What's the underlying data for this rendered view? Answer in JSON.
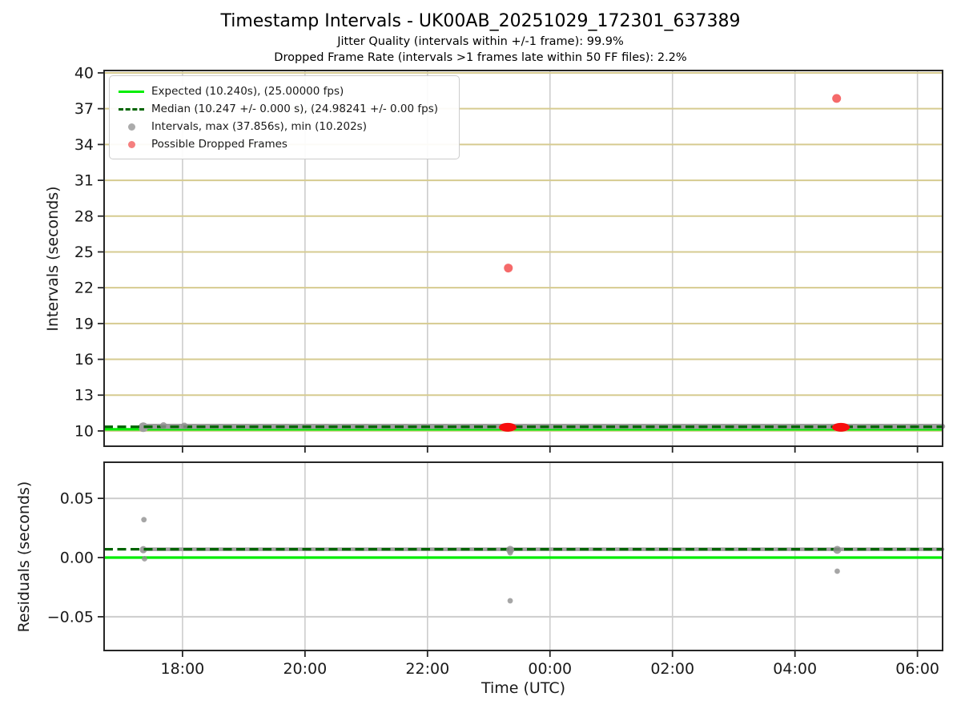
{
  "header": {
    "title": "Timestamp Intervals - UK00AB_20251029_172301_637389",
    "subtitle1": "Jitter Quality (intervals within +/-1 frame): 99.9%",
    "subtitle2": "Dropped Frame Rate (intervals >1 frames late within 50 FF files): 2.2%"
  },
  "legend": {
    "items": [
      {
        "symbol": "solid-line",
        "name": "expected-line-swatch",
        "color": "#00ee00",
        "label": "Expected (10.240s), (25.00000 fps)"
      },
      {
        "symbol": "dashed-line",
        "name": "median-line-swatch",
        "color": "#006400",
        "label": "Median (10.247 +/- 0.000 s), (24.98241 +/- 0.00 fps)"
      },
      {
        "symbol": "dot",
        "name": "intervals-dot-swatch",
        "color": "#ababab",
        "label": "Intervals, max (37.856s), min (10.202s)"
      },
      {
        "symbol": "dot",
        "name": "dropped-dot-swatch",
        "color": "#f57f7f",
        "label": "Possible Dropped Frames"
      }
    ]
  },
  "chart_data": [
    {
      "type": "scatter",
      "name": "intervals",
      "title": "Timestamp Intervals - UK00AB_20251029_172301_637389",
      "ylabel": "Intervals (seconds)",
      "x_unit": "hours UTC (24+ = past midnight)",
      "xlim": [
        16.72,
        30.41
      ],
      "ylim": [
        8.72,
        40.2
      ],
      "grid": {
        "y_color": "#d6cb90",
        "x_color": "#cdcdcd"
      },
      "yticks": [
        {
          "v": 10,
          "label": "10"
        },
        {
          "v": 13,
          "label": "13"
        },
        {
          "v": 16,
          "label": "16"
        },
        {
          "v": 19,
          "label": "19"
        },
        {
          "v": 22,
          "label": "22"
        },
        {
          "v": 25,
          "label": "25"
        },
        {
          "v": 28,
          "label": "28"
        },
        {
          "v": 31,
          "label": "31"
        },
        {
          "v": 34,
          "label": "34"
        },
        {
          "v": 37,
          "label": "37"
        },
        {
          "v": 40,
          "label": "40"
        }
      ],
      "expected_line": {
        "value": 10.24,
        "fps": "25.00000",
        "color": "#00ee00"
      },
      "median_line": {
        "value": 10.247,
        "fps": "24.98241",
        "color": "#006400",
        "style": "dashed"
      },
      "stats": {
        "max_interval_s": 37.856,
        "min_interval_s": 10.202,
        "jitter_quality_pct": 99.9,
        "dropped_frame_rate_pct": 2.2,
        "ff_files": 50
      },
      "interval_band": {
        "x_start": 17.36,
        "x_end": 30.41,
        "value": 10.247,
        "color": "#9e9e9e"
      },
      "start_blob": {
        "x": 17.36,
        "y": 10.247
      },
      "gray_points": [
        {
          "x": 17.69,
          "y": 10.45
        },
        {
          "x": 18.03,
          "y": 10.42
        }
      ],
      "dropped_points": [
        {
          "x": 23.32,
          "y": 23.65
        },
        {
          "x": 28.68,
          "y": 37.856
        }
      ],
      "dropped_clusters": [
        {
          "x": 23.31,
          "y": 10.24
        },
        {
          "x": 28.75,
          "y": 10.24
        }
      ],
      "legend_position": "upper-left"
    },
    {
      "type": "scatter",
      "name": "residuals",
      "ylabel": "Residuals (seconds)",
      "xlabel": "Time (UTC)",
      "xlim": [
        16.72,
        30.41
      ],
      "ylim": [
        -0.0785,
        0.0805
      ],
      "grid": {
        "y_color": "#cdcdcd",
        "x_color": "#cdcdcd"
      },
      "yticks": [
        {
          "v": -0.05,
          "label": "−0.05"
        },
        {
          "v": 0.0,
          "label": "0.00"
        },
        {
          "v": 0.05,
          "label": "0.05"
        }
      ],
      "expected_line": {
        "value": 0.0,
        "color": "#00ee00"
      },
      "median_line": {
        "value": 0.007,
        "color": "#006400",
        "style": "dashed"
      },
      "interval_band": {
        "x_start": 17.36,
        "x_end": 30.41,
        "value": 0.007,
        "color": "#9e9e9e"
      },
      "start_blob": {
        "x": 17.36,
        "y": 0.007
      },
      "cluster_dots": [
        {
          "x": 23.35,
          "y": 0.0065
        },
        {
          "x": 28.69,
          "y": 0.0065
        }
      ],
      "gray_points": [
        {
          "x": 17.37,
          "y": 0.032
        },
        {
          "x": 17.38,
          "y": -0.001
        },
        {
          "x": 23.35,
          "y": 0.004
        },
        {
          "x": 23.35,
          "y": -0.0365
        },
        {
          "x": 28.69,
          "y": -0.0115
        }
      ]
    }
  ],
  "x_axis": {
    "label": "Time (UTC)",
    "ticks": [
      {
        "v": 18,
        "label": "18:00"
      },
      {
        "v": 20,
        "label": "20:00"
      },
      {
        "v": 22,
        "label": "22:00"
      },
      {
        "v": 24,
        "label": "00:00"
      },
      {
        "v": 26,
        "label": "02:00"
      },
      {
        "v": 28,
        "label": "04:00"
      },
      {
        "v": 30,
        "label": "06:00"
      }
    ]
  },
  "colors": {
    "spine": "#262626",
    "tick_label": "#1a1a1a",
    "gray_dot": "#909090",
    "red_dot": "#f56a6a",
    "red_cluster": "#f70d0d"
  }
}
